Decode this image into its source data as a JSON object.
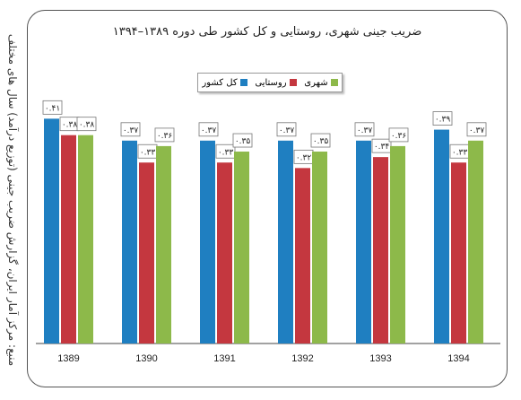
{
  "source_note": "منبع: مرکز آمار ایران، گزارش ضریب جینی (توزیع درآمد) سال های مختلف",
  "chart_data": {
    "type": "bar",
    "title": "ضریب جینی شهری، روستایی و کل کشور طی دوره ۱۳۸۹–۱۳۹۴",
    "categories": [
      "1389",
      "1390",
      "1391",
      "1392",
      "1393",
      "1394"
    ],
    "series": [
      {
        "name": "کل کشور",
        "color": "#1f7fc1",
        "values": [
          0.41,
          0.37,
          0.37,
          0.37,
          0.37,
          0.39
        ],
        "labels": [
          "۰.۴۱",
          "۰.۳۷",
          "۰.۳۷",
          "۰.۳۷",
          "۰.۳۷",
          "۰.۳۹"
        ]
      },
      {
        "name": "روستایی",
        "color": "#c4373f",
        "values": [
          0.38,
          0.33,
          0.33,
          0.32,
          0.34,
          0.33
        ],
        "labels": [
          "۰.۳۸",
          "۰.۳۳",
          "۰.۳۳",
          "۰.۳۲",
          "۰.۳۴",
          "۰.۳۳"
        ]
      },
      {
        "name": "شهری",
        "color": "#8db94a",
        "values": [
          0.38,
          0.36,
          0.35,
          0.35,
          0.36,
          0.37
        ],
        "labels": [
          "۰.۳۸",
          "۰.۳۶",
          "۰.۳۵",
          "۰.۳۵",
          "۰.۳۶",
          "۰.۳۷"
        ]
      }
    ],
    "ylim": [
      0,
      0.44
    ],
    "grid": false,
    "legend_position": "top-center"
  }
}
